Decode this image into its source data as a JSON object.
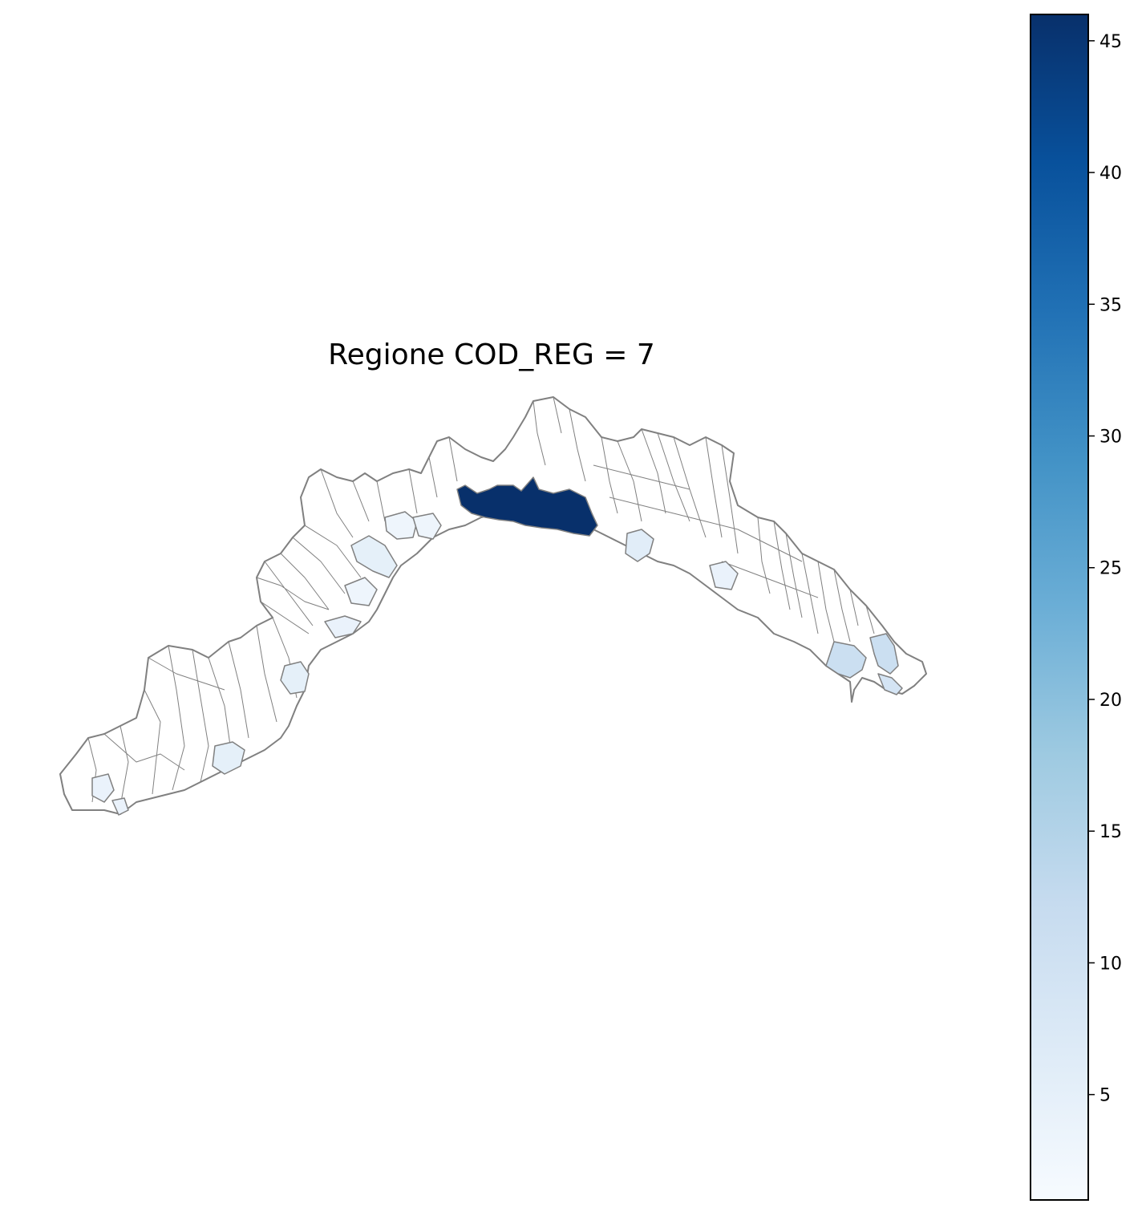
{
  "title": "Regione COD_REG = 7",
  "colors": {
    "edge": "#808080",
    "colormap": [
      "#f7fbff",
      "#deebf7",
      "#c6dbef",
      "#9ecae1",
      "#6baed6",
      "#4292c6",
      "#2171b5",
      "#08519c",
      "#08306b"
    ]
  },
  "chart_data": {
    "type": "choropleth",
    "title": "Regione COD_REG = 7",
    "colormap": "Blues",
    "colorbar": {
      "min": 1,
      "max": 46,
      "ticks": [
        5,
        10,
        15,
        20,
        25,
        30,
        35,
        40,
        45
      ],
      "tick_labels": [
        "5",
        "10",
        "15",
        "20",
        "25",
        "30",
        "35",
        "40",
        "45"
      ],
      "placement": "right"
    },
    "regions": [
      {
        "id": "genova",
        "value": 46
      },
      {
        "id": "la-spezia-area",
        "value": 11
      },
      {
        "id": "levanto-area",
        "value": 9
      },
      {
        "id": "sanremo-area",
        "value": 5
      },
      {
        "id": "imperia-area",
        "value": 5
      },
      {
        "id": "savona-area",
        "value": 5
      },
      {
        "id": "albenga-area",
        "value": 4
      },
      {
        "id": "chiavari-area",
        "value": 4
      },
      {
        "id": "rapallo-area",
        "value": 6
      },
      {
        "id": "ventimiglia-area",
        "value": 4
      },
      {
        "id": "varazze-area",
        "value": 3
      },
      {
        "id": "arenzano-area",
        "value": 3
      },
      {
        "id": "finale-area",
        "value": 3
      },
      {
        "id": "other-comuni",
        "value": 1
      }
    ]
  }
}
